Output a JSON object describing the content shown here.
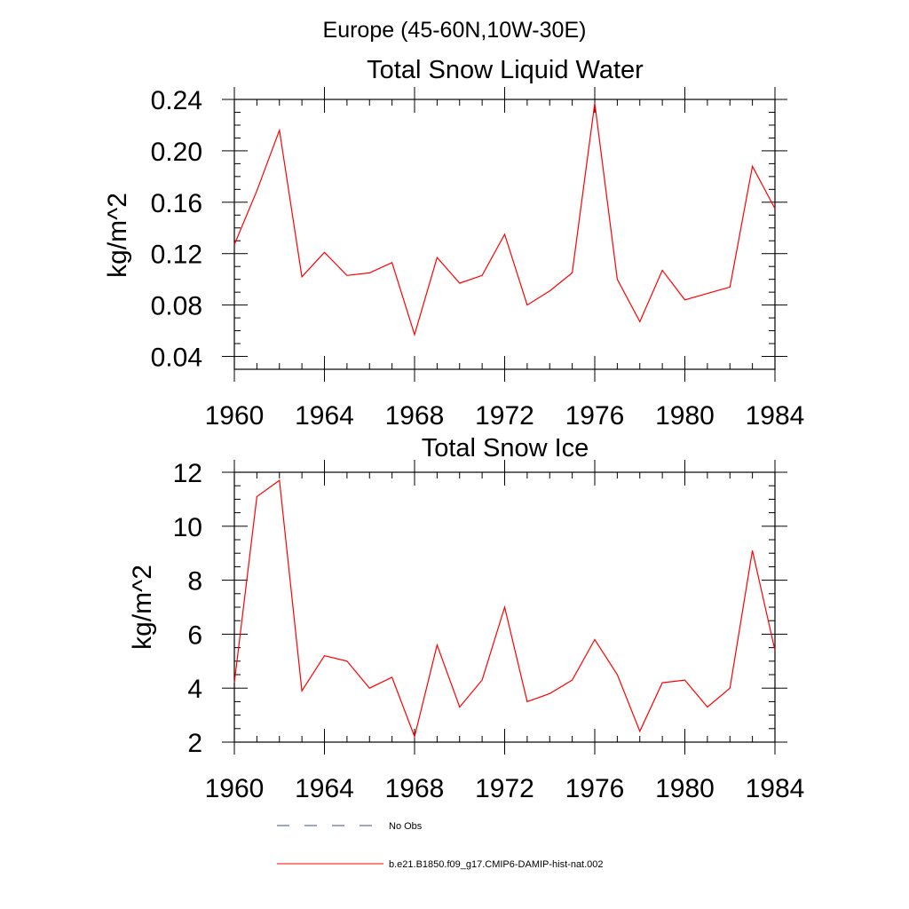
{
  "figure": {
    "main_title": "Europe (45-60N,10W-30E)"
  },
  "chart_data": [
    {
      "type": "line",
      "title": "Total Snow Liquid Water",
      "ylabel": "kg/m^2",
      "xlabel": "",
      "xlim": [
        1960,
        1984
      ],
      "ylim": [
        0.03,
        0.24
      ],
      "x_ticks": [
        "1960",
        "1964",
        "1968",
        "1972",
        "1976",
        "1980",
        "1984"
      ],
      "y_ticks": [
        "0.04",
        "0.08",
        "0.12",
        "0.16",
        "0.20",
        "0.24"
      ],
      "x": [
        1960,
        1961,
        1962,
        1963,
        1964,
        1965,
        1966,
        1967,
        1968,
        1969,
        1970,
        1971,
        1972,
        1973,
        1974,
        1975,
        1976,
        1977,
        1978,
        1979,
        1980,
        1981,
        1982,
        1983,
        1984
      ],
      "series": [
        {
          "name": "b.e21.B1850.f09_g17.CMIP6-DAMIP-hist-nat.002",
          "color": "#ff0000",
          "values": [
            0.127,
            0.169,
            0.216,
            0.102,
            0.121,
            0.103,
            0.105,
            0.113,
            0.057,
            0.117,
            0.097,
            0.103,
            0.135,
            0.08,
            0.091,
            0.105,
            0.237,
            0.1,
            0.067,
            0.107,
            0.084,
            0.089,
            0.094,
            0.188,
            0.155
          ]
        }
      ]
    },
    {
      "type": "line",
      "title": "Total Snow Ice",
      "ylabel": "kg/m^2",
      "xlabel": "",
      "xlim": [
        1960,
        1984
      ],
      "ylim": [
        2,
        12
      ],
      "x_ticks": [
        "1960",
        "1964",
        "1968",
        "1972",
        "1976",
        "1980",
        "1984"
      ],
      "y_ticks": [
        "2",
        "4",
        "6",
        "8",
        "10",
        "12"
      ],
      "x": [
        1960,
        1961,
        1962,
        1963,
        1964,
        1965,
        1966,
        1967,
        1968,
        1969,
        1970,
        1971,
        1972,
        1973,
        1974,
        1975,
        1976,
        1977,
        1978,
        1979,
        1980,
        1981,
        1982,
        1983,
        1984
      ],
      "series": [
        {
          "name": "b.e21.B1850.f09_g17.CMIP6-DAMIP-hist-nat.002",
          "color": "#ff0000",
          "values": [
            4.2,
            11.1,
            11.7,
            3.9,
            5.2,
            5.0,
            4.0,
            4.4,
            2.2,
            5.6,
            3.3,
            4.3,
            7.0,
            3.5,
            3.8,
            4.3,
            5.8,
            4.5,
            2.4,
            4.2,
            4.3,
            3.3,
            4.0,
            9.1,
            5.4
          ]
        }
      ]
    }
  ],
  "legend": {
    "placement": "bottom",
    "entries": [
      {
        "label": "No Obs",
        "style": "dashed",
        "color": "#3b4f8a"
      },
      {
        "label": "b.e21.B1850.f09_g17.CMIP6-DAMIP-hist-nat.002",
        "style": "solid",
        "color": "#ff0000"
      }
    ]
  }
}
